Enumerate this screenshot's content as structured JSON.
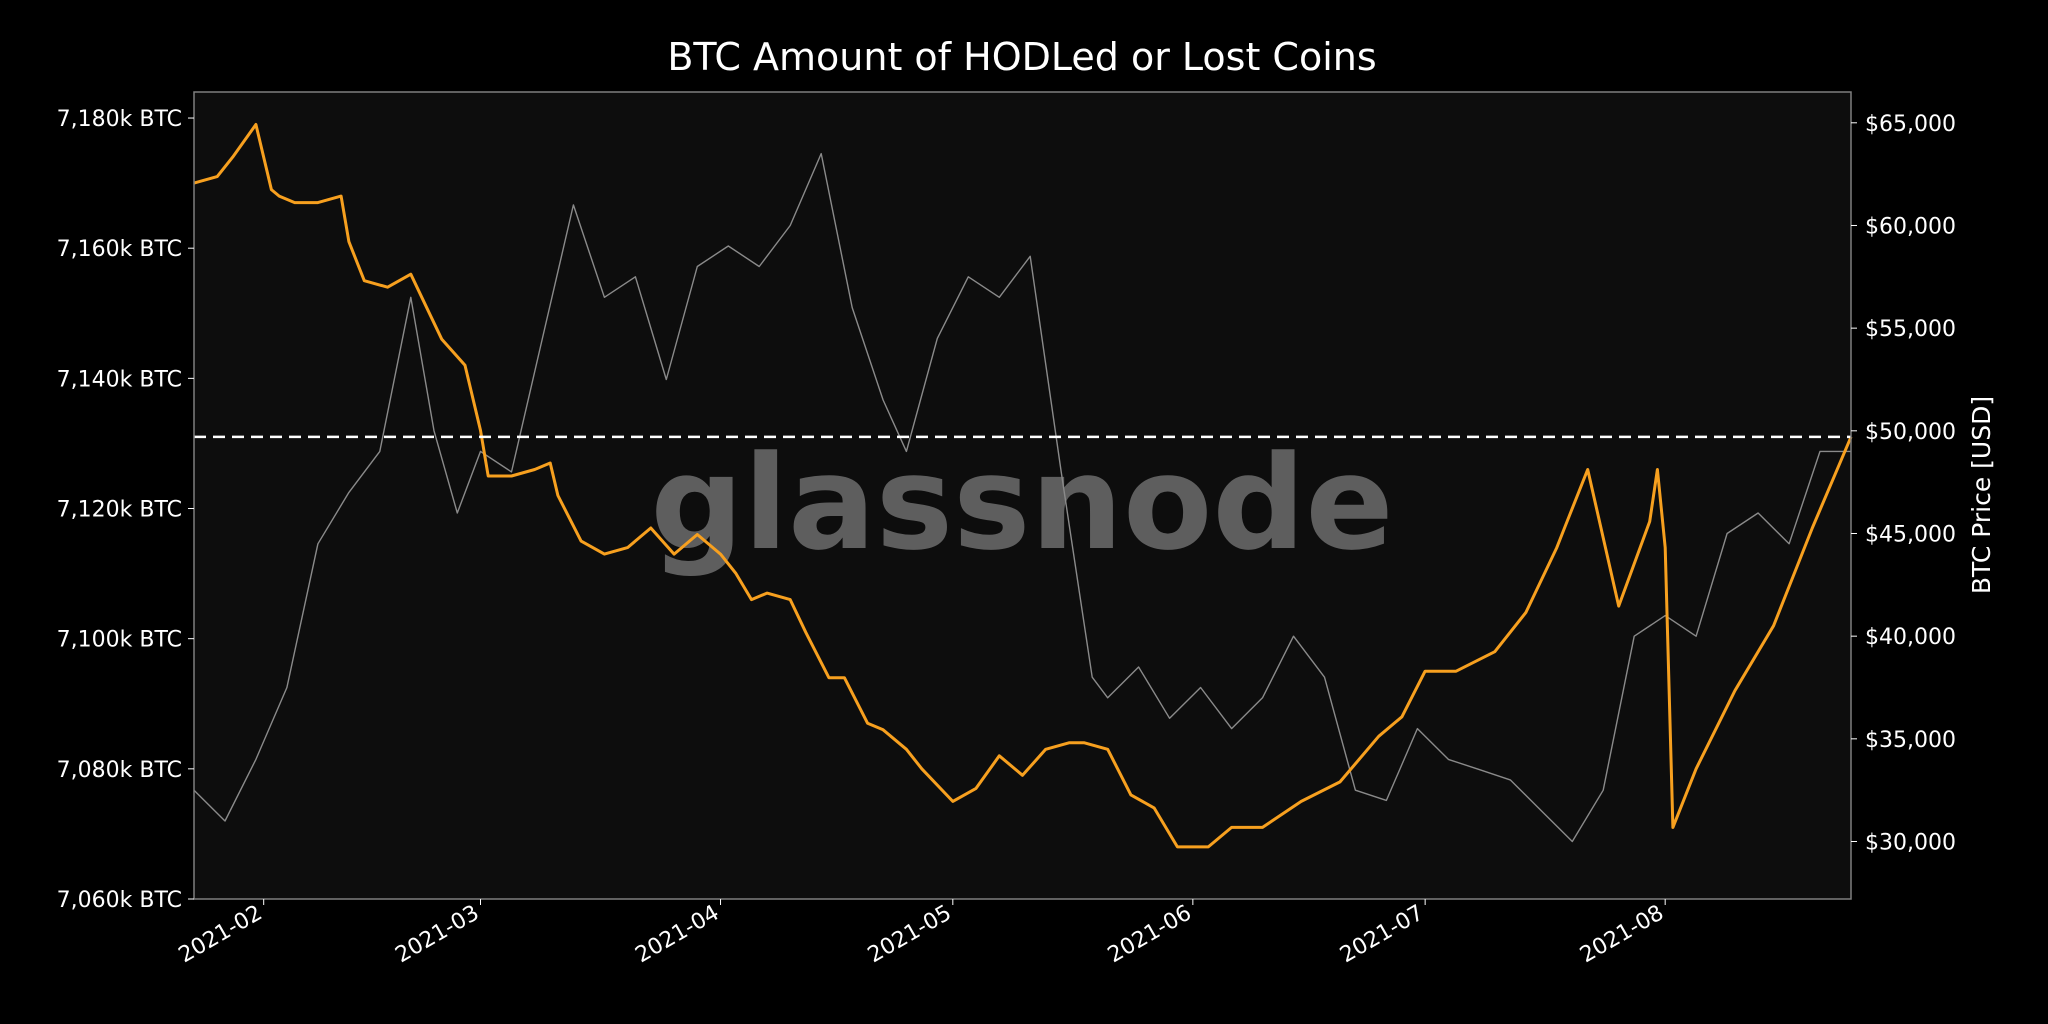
{
  "chart_data": {
    "type": "line",
    "title": "BTC Amount of HODLed or Lost Coins",
    "watermark": "glassnode",
    "ylabel_left": "",
    "ylabel_right": "BTC Price [USD]",
    "xlabel": "",
    "x_range": [
      "2021-01-23",
      "2021-08-25"
    ],
    "ylim_left": [
      7060,
      7184
    ],
    "ylim_right": [
      27200,
      66500
    ],
    "x_ticks": [
      "2021-02",
      "2021-03",
      "2021-04",
      "2021-05",
      "2021-06",
      "2021-07",
      "2021-08"
    ],
    "y_ticks_left": [
      "7,060k BTC",
      "7,080k BTC",
      "7,100k BTC",
      "7,120k BTC",
      "7,140k BTC",
      "7,160k BTC",
      "7,180k BTC"
    ],
    "y_ticks_right": [
      "$30,000",
      "$35,000",
      "$40,000",
      "$45,000",
      "$50,000",
      "$55,000",
      "$60,000",
      "$65,000"
    ],
    "grid": false,
    "reference_line": {
      "axis": "left",
      "value": 7131,
      "style": "dashed",
      "color": "#ffffff"
    },
    "colors": {
      "background": "#000000",
      "plot_background": "#0d0d0d",
      "hodl": "#f7a01f",
      "price": "#8a8a8a",
      "frame": "#7f7f7f"
    },
    "series": [
      {
        "axis": "left",
        "x": [
          "2021-01-23",
          "2021-01-26",
          "2021-01-28",
          "2021-01-31",
          "2021-02-02",
          "2021-02-03",
          "2021-02-05",
          "2021-02-08",
          "2021-02-11",
          "2021-02-12",
          "2021-02-14",
          "2021-02-17",
          "2021-02-20",
          "2021-02-22",
          "2021-02-24",
          "2021-02-27",
          "2021-03-01",
          "2021-03-02",
          "2021-03-05",
          "2021-03-08",
          "2021-03-10",
          "2021-03-11",
          "2021-03-14",
          "2021-03-17",
          "2021-03-20",
          "2021-03-23",
          "2021-03-26",
          "2021-03-29",
          "2021-04-01",
          "2021-04-03",
          "2021-04-05",
          "2021-04-07",
          "2021-04-10",
          "2021-04-12",
          "2021-04-15",
          "2021-04-17",
          "2021-04-20",
          "2021-04-22",
          "2021-04-25",
          "2021-04-27",
          "2021-05-01",
          "2021-05-04",
          "2021-05-07",
          "2021-05-10",
          "2021-05-13",
          "2021-05-16",
          "2021-05-18",
          "2021-05-21",
          "2021-05-24",
          "2021-05-27",
          "2021-05-30",
          "2021-06-03",
          "2021-06-06",
          "2021-06-10",
          "2021-06-15",
          "2021-06-20",
          "2021-06-25",
          "2021-06-28",
          "2021-07-01",
          "2021-07-05",
          "2021-07-10",
          "2021-07-14",
          "2021-07-18",
          "2021-07-19",
          "2021-07-22",
          "2021-07-26",
          "2021-07-30",
          "2021-07-31",
          "2021-08-01",
          "2021-08-02",
          "2021-08-05",
          "2021-08-10",
          "2021-08-15",
          "2021-08-20",
          "2021-08-25"
        ],
        "values": [
          7170,
          7171,
          7174,
          7179,
          7169,
          7168,
          7167,
          7167,
          7168,
          7161,
          7155,
          7154,
          7156,
          7151,
          7146,
          7142,
          7132,
          7125,
          7125,
          7126,
          7127,
          7122,
          7115,
          7113,
          7114,
          7117,
          7113,
          7116,
          7113,
          7110,
          7106,
          7107,
          7106,
          7101,
          7094,
          7094,
          7087,
          7086,
          7083,
          7080,
          7075,
          7077,
          7082,
          7079,
          7083,
          7084,
          7084,
          7083,
          7076,
          7074,
          7068,
          7068,
          7071,
          7071,
          7075,
          7078,
          7085,
          7088,
          7095,
          7095,
          7098,
          7104,
          7114,
          7117,
          7126,
          7105,
          7118,
          7126,
          7114,
          7071,
          7080,
          7092,
          7102,
          7117,
          7131
        ]
      },
      {
        "axis": "right",
        "x": [
          "2021-01-23",
          "2021-01-27",
          "2021-01-31",
          "2021-02-04",
          "2021-02-08",
          "2021-02-12",
          "2021-02-16",
          "2021-02-20",
          "2021-02-23",
          "2021-02-26",
          "2021-03-01",
          "2021-03-05",
          "2021-03-09",
          "2021-03-13",
          "2021-03-17",
          "2021-03-21",
          "2021-03-25",
          "2021-03-29",
          "2021-04-02",
          "2021-04-06",
          "2021-04-10",
          "2021-04-14",
          "2021-04-18",
          "2021-04-22",
          "2021-04-25",
          "2021-04-29",
          "2021-05-03",
          "2021-05-07",
          "2021-05-11",
          "2021-05-15",
          "2021-05-19",
          "2021-05-21",
          "2021-05-25",
          "2021-05-29",
          "2021-06-02",
          "2021-06-06",
          "2021-06-10",
          "2021-06-14",
          "2021-06-18",
          "2021-06-22",
          "2021-06-26",
          "2021-06-30",
          "2021-07-04",
          "2021-07-08",
          "2021-07-12",
          "2021-07-16",
          "2021-07-20",
          "2021-07-24",
          "2021-07-28",
          "2021-08-01",
          "2021-08-05",
          "2021-08-09",
          "2021-08-13",
          "2021-08-17",
          "2021-08-21",
          "2021-08-25"
        ],
        "values": [
          32500,
          31000,
          34000,
          37500,
          44500,
          47000,
          49000,
          56500,
          50000,
          46000,
          49000,
          48000,
          54500,
          61000,
          56500,
          57500,
          52500,
          58000,
          59000,
          58000,
          60000,
          63500,
          56000,
          51500,
          49000,
          54500,
          57500,
          56500,
          58500,
          48000,
          38000,
          37000,
          38500,
          36000,
          37500,
          35500,
          37000,
          40000,
          38000,
          32500,
          32000,
          35500,
          34000,
          33500,
          33000,
          31500,
          30000,
          32500,
          40000,
          41000,
          40000,
          45000,
          46000,
          44500,
          49000,
          49000
        ]
      }
    ]
  }
}
